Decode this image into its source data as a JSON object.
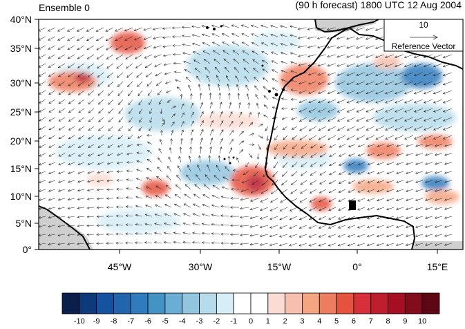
{
  "title_left": "Ensemble 0",
  "title_right": "(90 h forecast) 1800 UTC 12 Aug 2004",
  "lat_labels": [
    "40°N",
    "35°N",
    "30°N",
    "25°N",
    "20°N",
    "15°N",
    "10°N",
    "5°N",
    "0°"
  ],
  "lon_labels": [
    "45°W",
    "30°W",
    "15°W",
    "0°",
    "15°E"
  ],
  "reference_vector": {
    "magnitude": "10",
    "label": "Reference Vector"
  },
  "colorbar": {
    "ticks": [
      "-10",
      "-9",
      "-8",
      "-7",
      "-6",
      "-5",
      "-4",
      "-3",
      "-2",
      "-1",
      "0",
      "1",
      "2",
      "3",
      "4",
      "5",
      "6",
      "7",
      "8",
      "9",
      "10"
    ],
    "colors": [
      "#0a1f4a",
      "#0d3a7a",
      "#1752a0",
      "#2166ac",
      "#2f7bbd",
      "#4393c3",
      "#6aaed6",
      "#92c5de",
      "#b6dbea",
      "#d8eef7",
      "#ffffff",
      "#ffffff",
      "#fbdcd3",
      "#f7bfae",
      "#f4a582",
      "#ee7d5f",
      "#e5533f",
      "#d6303a",
      "#be1e2d",
      "#a50f24",
      "#820b1c",
      "#5e0714"
    ]
  },
  "colors": {
    "land_outline": "#000000",
    "missing_area": "#cfcfcf",
    "vector": "#333333"
  }
}
